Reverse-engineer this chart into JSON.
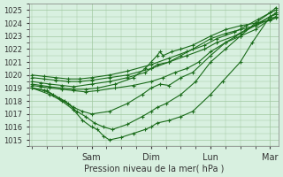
{
  "bg_color": "#d8f0e0",
  "grid_color": "#a0c8a0",
  "line_color": "#1a6b1a",
  "marker_color": "#1a6b1a",
  "xlabel_text": "Pression niveau de la mer( hPa )",
  "yticks": [
    1015,
    1016,
    1017,
    1018,
    1019,
    1020,
    1021,
    1022,
    1023,
    1024,
    1025
  ],
  "ylim": [
    1014.5,
    1025.5
  ],
  "day_labels": [
    "Sam",
    "Dim",
    "Lun",
    "Mar"
  ],
  "day_positions": [
    1.0,
    2.0,
    3.0,
    4.0
  ],
  "xlim": [
    -0.05,
    4.15
  ],
  "series": [
    {
      "x": [
        0.0,
        0.3,
        0.5,
        0.7,
        0.85,
        1.0,
        1.1,
        1.2,
        1.3,
        1.5,
        1.7,
        1.9,
        2.0,
        2.1,
        2.3,
        2.5,
        2.7,
        3.0,
        3.2,
        3.5,
        3.7,
        4.0,
        4.1
      ],
      "y": [
        1019.0,
        1018.5,
        1018.0,
        1017.3,
        1016.5,
        1016.0,
        1015.8,
        1015.3,
        1015.0,
        1015.2,
        1015.5,
        1015.8,
        1016.0,
        1016.3,
        1016.5,
        1016.8,
        1017.2,
        1018.5,
        1019.5,
        1021.0,
        1022.5,
        1024.5,
        1024.7
      ]
    },
    {
      "x": [
        0.0,
        0.25,
        0.45,
        0.6,
        0.75,
        0.9,
        1.05,
        1.2,
        1.35,
        1.6,
        1.85,
        2.0,
        2.1,
        2.25,
        2.5,
        2.75,
        3.0,
        3.25,
        3.5,
        3.75,
        4.0,
        4.1
      ],
      "y": [
        1019.0,
        1018.8,
        1018.2,
        1017.8,
        1017.2,
        1016.8,
        1016.3,
        1016.0,
        1015.8,
        1016.2,
        1016.8,
        1017.2,
        1017.5,
        1017.8,
        1018.5,
        1019.5,
        1021.0,
        1022.0,
        1023.0,
        1024.0,
        1024.8,
        1025.0
      ]
    },
    {
      "x": [
        0.0,
        0.2,
        0.35,
        0.55,
        0.7,
        0.85,
        1.0,
        1.3,
        1.6,
        1.85,
        2.0,
        2.15,
        2.3,
        2.5,
        2.7,
        3.0,
        3.25,
        3.5,
        3.75,
        4.0,
        4.1
      ],
      "y": [
        1019.0,
        1018.8,
        1018.5,
        1018.0,
        1017.5,
        1017.2,
        1017.0,
        1017.2,
        1017.8,
        1018.5,
        1019.0,
        1019.3,
        1019.2,
        1019.8,
        1020.2,
        1021.5,
        1022.5,
        1023.2,
        1023.8,
        1024.5,
        1024.7
      ]
    },
    {
      "x": [
        0.0,
        0.15,
        0.3,
        0.5,
        0.7,
        0.9,
        1.1,
        1.4,
        1.7,
        2.0,
        2.2,
        2.4,
        2.6,
        2.8,
        3.0,
        3.25,
        3.5,
        3.75,
        4.0,
        4.1
      ],
      "y": [
        1019.2,
        1019.1,
        1019.0,
        1018.9,
        1018.8,
        1018.7,
        1018.8,
        1019.0,
        1019.2,
        1019.5,
        1019.8,
        1020.2,
        1020.5,
        1021.0,
        1021.8,
        1022.5,
        1023.0,
        1023.5,
        1024.3,
        1024.5
      ]
    },
    {
      "x": [
        0.0,
        0.15,
        0.3,
        0.5,
        0.7,
        0.9,
        1.1,
        1.4,
        1.7,
        1.9,
        2.0,
        2.1,
        2.15,
        2.2,
        2.35,
        2.5,
        2.7,
        3.0,
        3.25,
        3.5,
        3.75,
        4.0,
        4.1
      ],
      "y": [
        1019.3,
        1019.2,
        1019.1,
        1019.0,
        1018.9,
        1018.9,
        1019.0,
        1019.3,
        1019.8,
        1020.5,
        1021.0,
        1021.5,
        1021.8,
        1021.5,
        1021.8,
        1022.0,
        1022.3,
        1023.0,
        1023.5,
        1023.8,
        1024.0,
        1024.2,
        1024.4
      ]
    },
    {
      "x": [
        0.0,
        0.15,
        0.3,
        0.5,
        0.7,
        1.0,
        1.3,
        1.6,
        1.9,
        2.0,
        2.1,
        2.3,
        2.5,
        2.7,
        3.0,
        3.25,
        3.5,
        3.75,
        4.0,
        4.1
      ],
      "y": [
        1019.5,
        1019.4,
        1019.3,
        1019.2,
        1019.1,
        1019.3,
        1019.5,
        1019.8,
        1020.2,
        1020.5,
        1020.8,
        1021.0,
        1021.5,
        1022.0,
        1022.8,
        1023.2,
        1023.5,
        1023.8,
        1024.3,
        1024.5
      ]
    },
    {
      "x": [
        0.0,
        0.2,
        0.4,
        0.6,
        0.8,
        1.0,
        1.3,
        1.6,
        2.0,
        2.3,
        2.6,
        2.9,
        3.1,
        3.4,
        3.6,
        3.8,
        4.0,
        4.1
      ],
      "y": [
        1019.8,
        1019.7,
        1019.6,
        1019.5,
        1019.5,
        1019.6,
        1019.8,
        1020.0,
        1020.5,
        1021.0,
        1021.5,
        1022.0,
        1022.5,
        1023.0,
        1023.5,
        1024.0,
        1024.5,
        1024.8
      ]
    },
    {
      "x": [
        0.0,
        0.2,
        0.4,
        0.6,
        0.8,
        1.0,
        1.3,
        1.6,
        2.0,
        2.3,
        2.6,
        2.9,
        3.1,
        3.4,
        3.6,
        3.8,
        4.0,
        4.1
      ],
      "y": [
        1020.0,
        1019.9,
        1019.8,
        1019.7,
        1019.7,
        1019.8,
        1020.0,
        1020.3,
        1020.8,
        1021.3,
        1021.8,
        1022.3,
        1022.8,
        1023.3,
        1023.8,
        1024.3,
        1024.8,
        1025.2
      ]
    }
  ]
}
